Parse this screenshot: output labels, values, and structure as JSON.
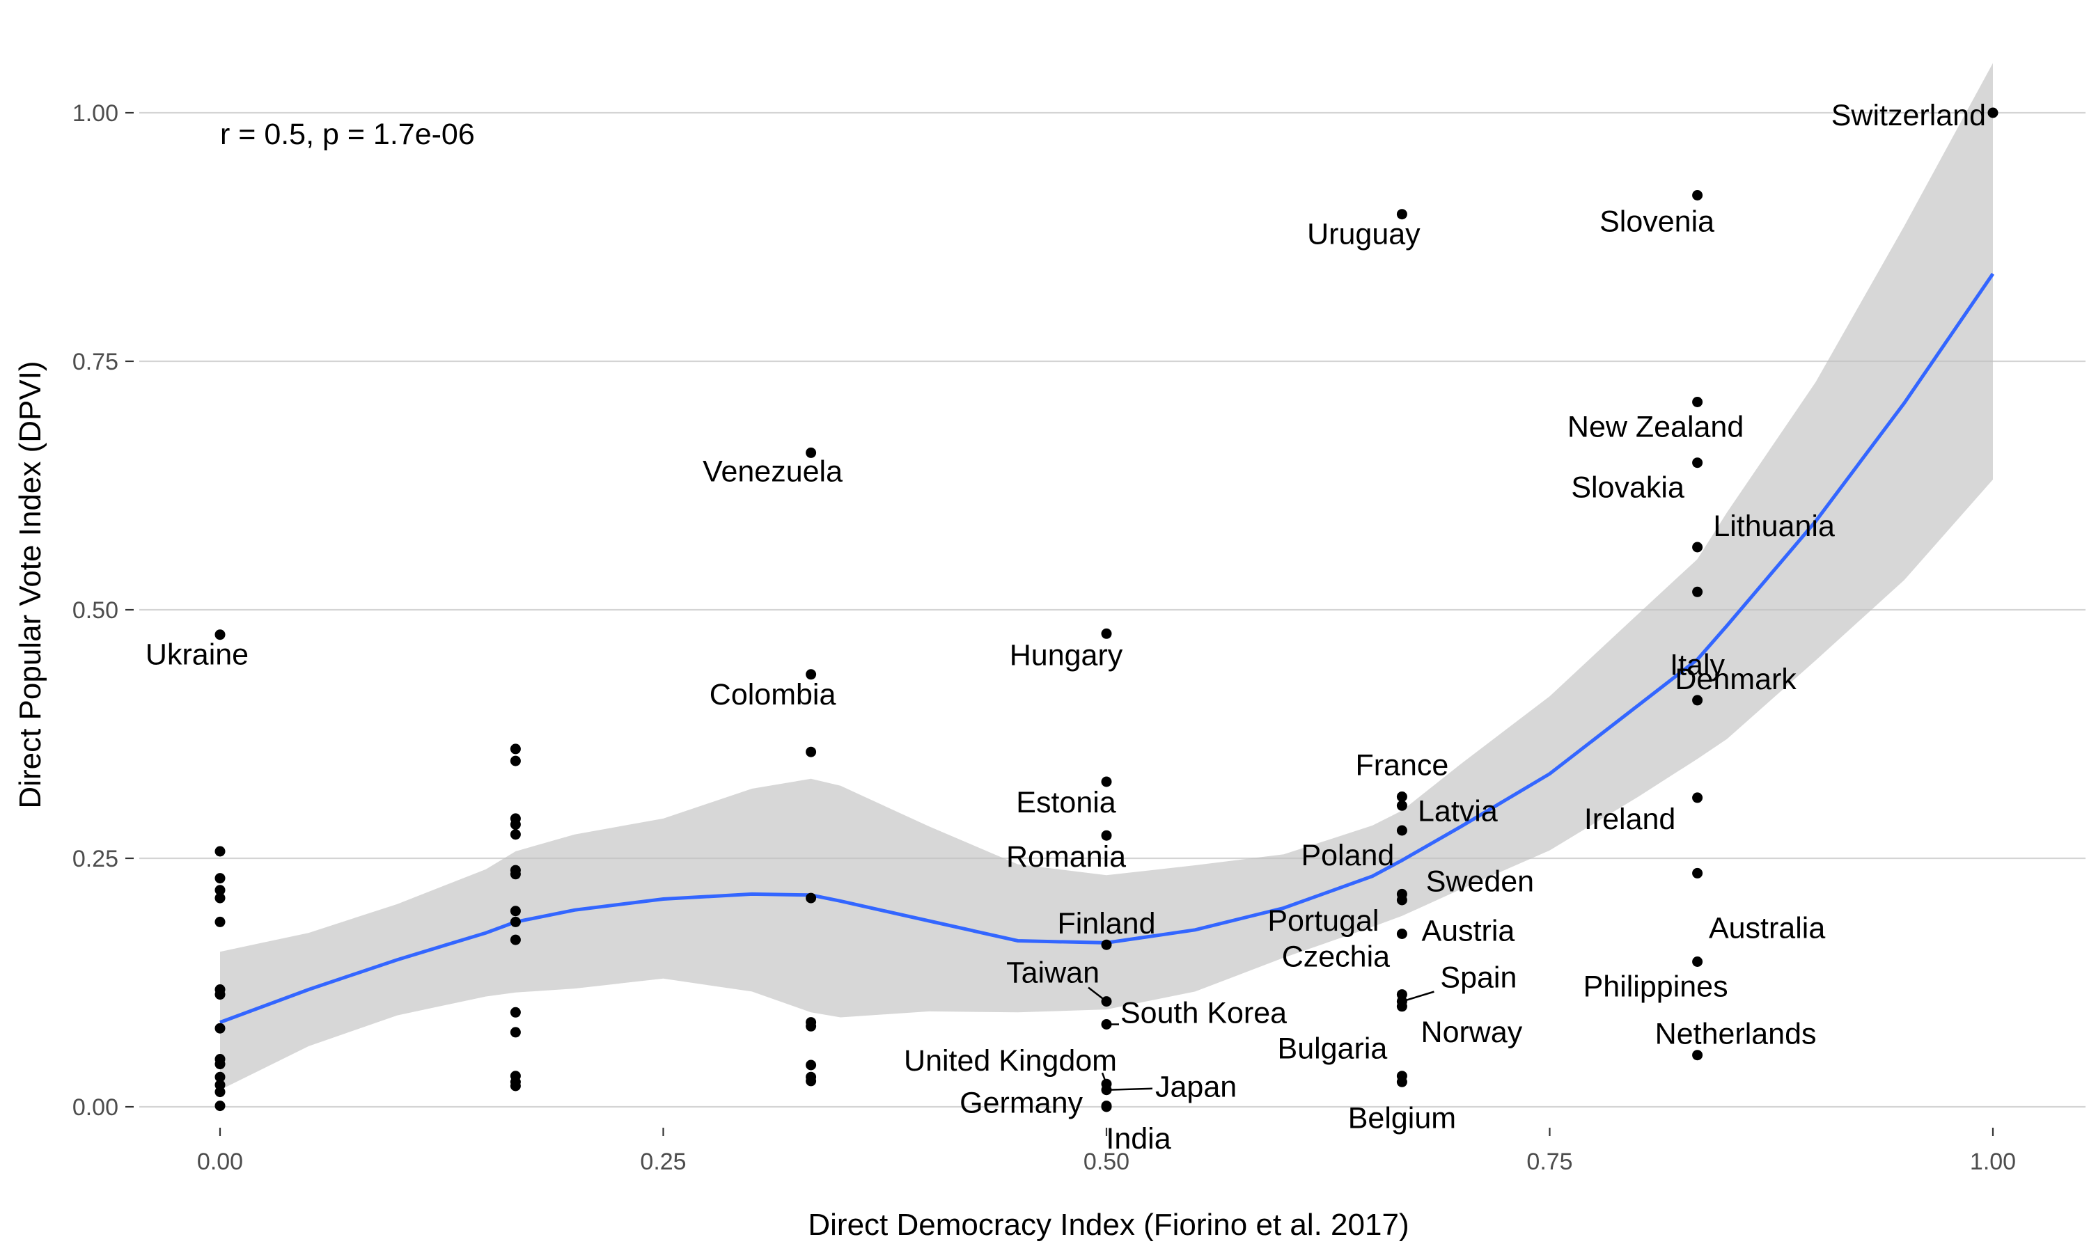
{
  "chart_data": {
    "type": "scatter",
    "xlabel": "Direct Democracy Index (Fiorino et al. 2017)",
    "ylabel": "Direct Popular Vote Index (DPVI)",
    "xlim": [
      -0.05,
      1.05
    ],
    "ylim": [
      -0.03,
      1.05
    ],
    "x_ticks": [
      "0.00",
      "0.25",
      "0.50",
      "0.75",
      "1.00"
    ],
    "y_ticks": [
      "0.00",
      "0.25",
      "0.50",
      "0.75",
      "1.00"
    ],
    "grid": "horizontal",
    "annotation": "r = 0.5, p = 1.7e-06",
    "colors": {
      "points": "#000000",
      "fit_line": "#3366ff",
      "confidence_band": "#bebebe",
      "grid": "#d4d4d4"
    },
    "points": [
      {
        "x": 0.0,
        "y": 0.475,
        "label": "Ukraine"
      },
      {
        "x": 0.0,
        "y": 0.257
      },
      {
        "x": 0.0,
        "y": 0.23
      },
      {
        "x": 0.0,
        "y": 0.218
      },
      {
        "x": 0.0,
        "y": 0.21
      },
      {
        "x": 0.0,
        "y": 0.186
      },
      {
        "x": 0.0,
        "y": 0.118
      },
      {
        "x": 0.0,
        "y": 0.113
      },
      {
        "x": 0.0,
        "y": 0.079
      },
      {
        "x": 0.0,
        "y": 0.048
      },
      {
        "x": 0.0,
        "y": 0.043
      },
      {
        "x": 0.0,
        "y": 0.03
      },
      {
        "x": 0.0,
        "y": 0.022
      },
      {
        "x": 0.0,
        "y": 0.015
      },
      {
        "x": 0.0,
        "y": 0.001
      },
      {
        "x": 0.1667,
        "y": 0.36
      },
      {
        "x": 0.1667,
        "y": 0.348
      },
      {
        "x": 0.1667,
        "y": 0.29
      },
      {
        "x": 0.1667,
        "y": 0.284
      },
      {
        "x": 0.1667,
        "y": 0.274
      },
      {
        "x": 0.1667,
        "y": 0.238
      },
      {
        "x": 0.1667,
        "y": 0.234
      },
      {
        "x": 0.1667,
        "y": 0.197
      },
      {
        "x": 0.1667,
        "y": 0.186
      },
      {
        "x": 0.1667,
        "y": 0.168
      },
      {
        "x": 0.1667,
        "y": 0.095
      },
      {
        "x": 0.1667,
        "y": 0.075
      },
      {
        "x": 0.1667,
        "y": 0.031
      },
      {
        "x": 0.1667,
        "y": 0.025
      },
      {
        "x": 0.1667,
        "y": 0.021
      },
      {
        "x": 0.3333,
        "y": 0.658,
        "label": "Venezuela"
      },
      {
        "x": 0.3333,
        "y": 0.435,
        "label": "Colombia"
      },
      {
        "x": 0.3333,
        "y": 0.357
      },
      {
        "x": 0.3333,
        "y": 0.21
      },
      {
        "x": 0.3333,
        "y": 0.085
      },
      {
        "x": 0.3333,
        "y": 0.081
      },
      {
        "x": 0.3333,
        "y": 0.042
      },
      {
        "x": 0.3333,
        "y": 0.03
      },
      {
        "x": 0.3333,
        "y": 0.026
      },
      {
        "x": 0.5,
        "y": 0.476,
        "label": "Hungary"
      },
      {
        "x": 0.5,
        "y": 0.327,
        "label": "Estonia"
      },
      {
        "x": 0.5,
        "y": 0.273,
        "label": "Romania"
      },
      {
        "x": 0.5,
        "y": 0.163,
        "label": "Finland"
      },
      {
        "x": 0.5,
        "y": 0.106,
        "label": "Taiwan"
      },
      {
        "x": 0.5,
        "y": 0.083,
        "label": "South Korea"
      },
      {
        "x": 0.5,
        "y": 0.023,
        "label": "United Kingdom"
      },
      {
        "x": 0.5,
        "y": 0.017,
        "label": "Japan"
      },
      {
        "x": 0.5,
        "y": 0.001,
        "label": "Germany"
      },
      {
        "x": 0.5,
        "y": 0.0,
        "label": "India"
      },
      {
        "x": 0.6667,
        "y": 0.898,
        "label": "Uruguay"
      },
      {
        "x": 0.6667,
        "y": 0.312,
        "label": "France"
      },
      {
        "x": 0.6667,
        "y": 0.303,
        "label": "Latvia"
      },
      {
        "x": 0.6667,
        "y": 0.278,
        "label": "Poland"
      },
      {
        "x": 0.6667,
        "y": 0.214,
        "label": "Sweden"
      },
      {
        "x": 0.6667,
        "y": 0.208,
        "label": "Portugal"
      },
      {
        "x": 0.6667,
        "y": 0.174,
        "label": "Austria"
      },
      {
        "x": 0.6667,
        "y": 0.113,
        "label": "Czechia"
      },
      {
        "x": 0.6667,
        "y": 0.106,
        "label": "Spain"
      },
      {
        "x": 0.6667,
        "y": 0.101,
        "label": "Norway"
      },
      {
        "x": 0.6667,
        "y": 0.031,
        "label": "Bulgaria"
      },
      {
        "x": 0.6667,
        "y": 0.025,
        "label": "Belgium"
      },
      {
        "x": 0.8333,
        "y": 0.917,
        "label": "Slovenia"
      },
      {
        "x": 0.8333,
        "y": 0.709,
        "label": "New Zealand"
      },
      {
        "x": 0.8333,
        "y": 0.648,
        "label": "Slovakia"
      },
      {
        "x": 0.8333,
        "y": 0.563,
        "label": "Lithuania"
      },
      {
        "x": 0.8333,
        "y": 0.518,
        "label": "Italy"
      },
      {
        "x": 0.8333,
        "y": 0.409,
        "label": "Denmark"
      },
      {
        "x": 0.8333,
        "y": 0.311,
        "label": "Ireland"
      },
      {
        "x": 0.8333,
        "y": 0.235,
        "label": "Australia"
      },
      {
        "x": 0.8333,
        "y": 0.146,
        "label": "Philippines"
      },
      {
        "x": 0.8333,
        "y": 0.052,
        "label": "Netherlands"
      },
      {
        "x": 1.0,
        "y": 1.0,
        "label": "Switzerland"
      }
    ],
    "smooth_fit": {
      "x": [
        0.0,
        0.05,
        0.1,
        0.15,
        0.1667,
        0.2,
        0.25,
        0.3,
        0.3333,
        0.35,
        0.4,
        0.45,
        0.5,
        0.55,
        0.6,
        0.65,
        0.6667,
        0.7,
        0.75,
        0.8,
        0.8333,
        0.85,
        0.9,
        0.95,
        1.0
      ],
      "y": [
        0.085,
        0.118,
        0.148,
        0.175,
        0.186,
        0.198,
        0.209,
        0.214,
        0.213,
        0.207,
        0.187,
        0.167,
        0.165,
        0.178,
        0.2,
        0.232,
        0.248,
        0.282,
        0.335,
        0.404,
        0.45,
        0.484,
        0.589,
        0.708,
        0.838
      ],
      "lower": [
        0.017,
        0.061,
        0.092,
        0.111,
        0.115,
        0.119,
        0.129,
        0.116,
        0.095,
        0.09,
        0.096,
        0.095,
        0.098,
        0.116,
        0.15,
        0.181,
        0.192,
        0.219,
        0.258,
        0.312,
        0.35,
        0.37,
        0.449,
        0.53,
        0.631
      ],
      "upper": [
        0.156,
        0.175,
        0.204,
        0.239,
        0.257,
        0.274,
        0.29,
        0.32,
        0.33,
        0.323,
        0.282,
        0.244,
        0.233,
        0.243,
        0.254,
        0.283,
        0.298,
        0.345,
        0.413,
        0.496,
        0.551,
        0.598,
        0.729,
        0.886,
        1.05
      ]
    }
  }
}
